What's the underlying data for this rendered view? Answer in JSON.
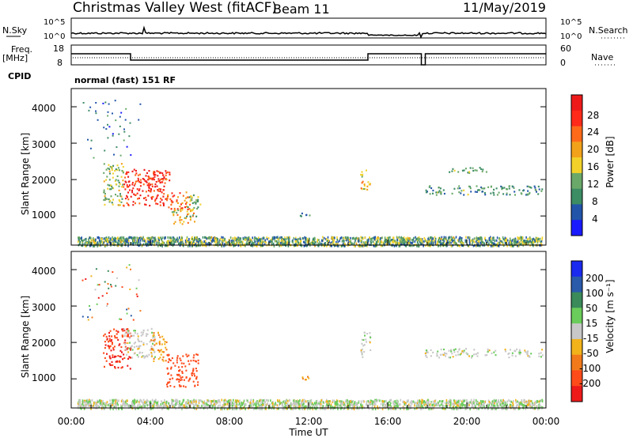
{
  "header": {
    "station": "Christmas Valley West (fitACF)",
    "beam": "Beam 11",
    "date": "11/May/2019"
  },
  "nsky_panel": {
    "left_label": "N.Sky",
    "right_label": "N.Search",
    "left_ticks": [
      "10^5",
      "10^0"
    ],
    "right_ticks": [
      "10^5",
      "10^0"
    ]
  },
  "freq_panel": {
    "left_label_1": "Freq.",
    "left_label_2": "[MHz]",
    "right_label": "Nave",
    "left_ticks": [
      "18",
      "8"
    ],
    "right_ticks": [
      "60",
      "0"
    ]
  },
  "cpid": {
    "label": "CPID",
    "text": "normal (fast) 151 RF"
  },
  "power_panel": {
    "ylabel": "Slant Range [km]",
    "yticks": [
      "4000",
      "3000",
      "2000",
      "1000"
    ],
    "colorbar_label": "Power [dB]",
    "colorbar_ticks": [
      "28",
      "24",
      "20",
      "16",
      "12",
      "8",
      "4"
    ],
    "colors": [
      "#1a1aff",
      "#2255aa",
      "#3c8c64",
      "#6aa86a",
      "#f2d22a",
      "#f2a21a",
      "#ff6a1a",
      "#ff2a1a",
      "#ee1a1a"
    ]
  },
  "velocity_panel": {
    "ylabel": "Slant Range [km]",
    "yticks": [
      "4000",
      "3000",
      "2000",
      "1000"
    ],
    "colorbar_label": "Velocity [m s⁻¹]",
    "colorbar_ticks": [
      "200",
      "100",
      "50",
      "15",
      "-15",
      "-50",
      "-100",
      "-200"
    ],
    "colors": [
      "#1a2aee",
      "#2a5aaa",
      "#3a8a5a",
      "#6acc5a",
      "#c8c8c8",
      "#f2b21a",
      "#f27a1a",
      "#ff4a1a",
      "#ee1a1a"
    ],
    "ground_scatter_color": "#c8c8c8"
  },
  "xaxis": {
    "label": "Time UT",
    "ticks": [
      "00:00",
      "04:00",
      "08:00",
      "12:00",
      "16:00",
      "20:00",
      "00:00"
    ]
  },
  "chart_data": {
    "type": "heatmap",
    "x_range_hours": [
      0,
      24
    ],
    "y_range_km": [
      200,
      4500
    ],
    "frequency_mhz": [
      {
        "start": 0.0,
        "end": 3.0,
        "value": 13.6
      },
      {
        "start": 3.0,
        "end": 15.0,
        "value": 10.4
      },
      {
        "start": 15.0,
        "end": 17.7,
        "value": 13.6
      },
      {
        "start": 17.7,
        "end": 17.9,
        "value": 8.0
      },
      {
        "start": 17.9,
        "end": 24.0,
        "value": 13.6
      }
    ],
    "power_regions": [
      {
        "t0": 1.6,
        "t1": 2.6,
        "r0": 1300,
        "r1": 2500,
        "value": 14
      },
      {
        "t0": 2.6,
        "t1": 4.8,
        "r0": 1300,
        "r1": 2300,
        "value": 28
      },
      {
        "t0": 3.8,
        "t1": 5.0,
        "r0": 1900,
        "r1": 2250,
        "value": 26
      },
      {
        "t0": 4.8,
        "t1": 6.0,
        "r0": 1200,
        "r1": 1700,
        "value": 24
      },
      {
        "t0": 5.0,
        "t1": 6.2,
        "r0": 800,
        "r1": 1200,
        "value": 18
      },
      {
        "t0": 5.8,
        "t1": 6.5,
        "r0": 1000,
        "r1": 1600,
        "value": 12
      },
      {
        "t0": 11.3,
        "t1": 12.2,
        "r0": 1000,
        "r1": 1100,
        "value": 8
      },
      {
        "t0": 14.6,
        "t1": 15.1,
        "r0": 1700,
        "r1": 2300,
        "value": 18
      },
      {
        "t0": 17.8,
        "t1": 23.8,
        "r0": 1600,
        "r1": 1850,
        "value": 10
      },
      {
        "t0": 19.0,
        "t1": 21.0,
        "r0": 2200,
        "r1": 2350,
        "value": 12
      }
    ],
    "velocity_regions": [
      {
        "t0": 1.6,
        "t1": 3.0,
        "r0": 1300,
        "r1": 2400,
        "value": -200
      },
      {
        "t0": 2.6,
        "t1": 4.2,
        "r0": 1600,
        "r1": 2400,
        "value": 0
      },
      {
        "t0": 4.0,
        "t1": 4.8,
        "r0": 1500,
        "r1": 2300,
        "value": -50
      },
      {
        "t0": 4.8,
        "t1": 6.4,
        "r0": 800,
        "r1": 1700,
        "value": -150
      },
      {
        "t0": 11.3,
        "t1": 12.2,
        "r0": 1000,
        "r1": 1100,
        "value": -50
      },
      {
        "t0": 14.6,
        "t1": 15.1,
        "r0": 1600,
        "r1": 2300,
        "value": 0
      },
      {
        "t0": 17.8,
        "t1": 23.8,
        "r0": 1600,
        "r1": 1850,
        "value": 0
      }
    ],
    "near_range_band_km": [
      200,
      450
    ]
  }
}
